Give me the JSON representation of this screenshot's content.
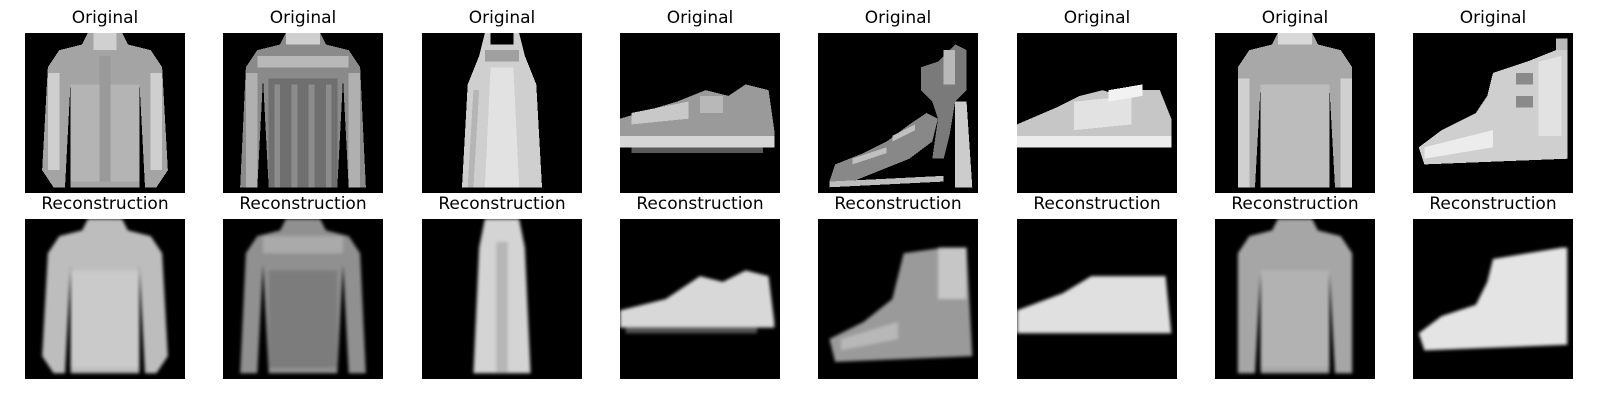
{
  "row_titles": {
    "original": "Original",
    "reconstruction": "Reconstruction"
  },
  "panels": [
    {
      "item": "shirt",
      "original": "Original",
      "reconstruction": "Reconstruction"
    },
    {
      "item": "jacket",
      "original": "Original",
      "reconstruction": "Reconstruction"
    },
    {
      "item": "dress",
      "original": "Original",
      "reconstruction": "Reconstruction"
    },
    {
      "item": "sneaker",
      "original": "Original",
      "reconstruction": "Reconstruction"
    },
    {
      "item": "sandal",
      "original": "Original",
      "reconstruction": "Reconstruction"
    },
    {
      "item": "sneaker",
      "original": "Original",
      "reconstruction": "Reconstruction"
    },
    {
      "item": "top",
      "original": "Original",
      "reconstruction": "Reconstruction"
    },
    {
      "item": "ankle-boot",
      "original": "Original",
      "reconstruction": "Reconstruction"
    }
  ],
  "colors": {
    "background": "#000000",
    "garment_light": "#d8d8d8",
    "garment_mid": "#a8a8a8",
    "garment_dark": "#6e6e6e"
  }
}
